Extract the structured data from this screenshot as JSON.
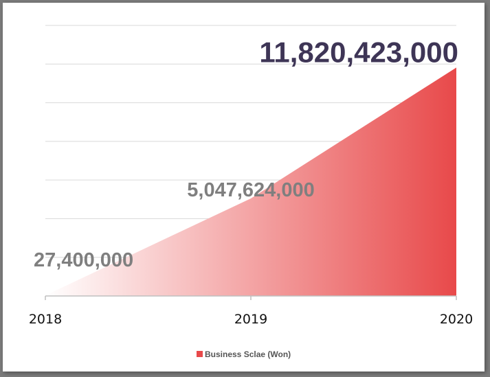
{
  "chart_data": {
    "type": "area",
    "categories": [
      "2018",
      "2019",
      "2020"
    ],
    "series": [
      {
        "name": "Business Sclae (Won)",
        "values": [
          27400000,
          5047624000,
          11820423000
        ],
        "labels": [
          "27,400,000",
          "5,047,624,000",
          "11,820,423,000"
        ]
      }
    ],
    "ylim": [
      0,
      14000000000
    ],
    "grid": true,
    "legend": "bottom",
    "colors": {
      "fill_light": "#ffffff",
      "fill_dark": "#e8494a",
      "gridline": "#d9d9d9",
      "axis": "#bfbfbf",
      "label_gray": "#7f7f7f",
      "label_highlight": "#3e3556"
    }
  }
}
